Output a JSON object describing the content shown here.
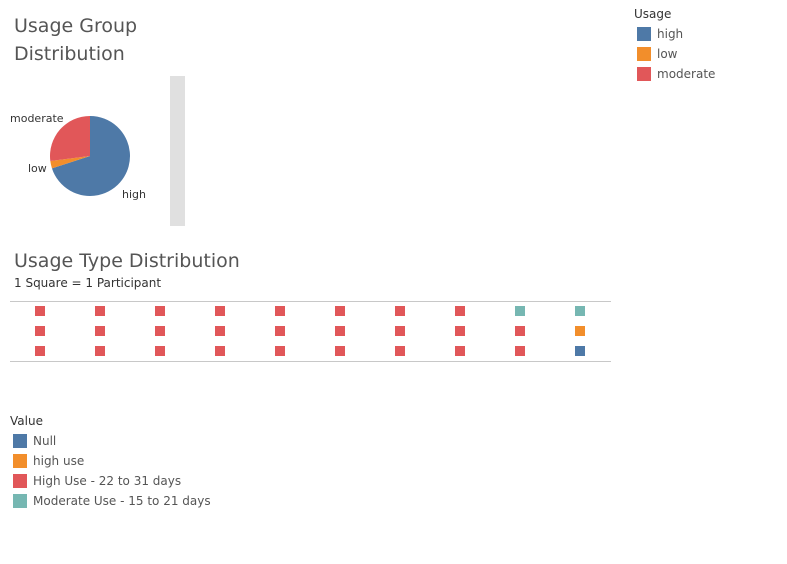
{
  "pie_panel": {
    "title_line1": "Usage Group",
    "title_line2": "Distribution"
  },
  "usage_legend": {
    "title": "Usage",
    "items": [
      {
        "label": "high",
        "color": "#4e79a7"
      },
      {
        "label": "low",
        "color": "#f28e2b"
      },
      {
        "label": "moderate",
        "color": "#e15759"
      }
    ]
  },
  "waffle_panel": {
    "title": "Usage Type Distribution",
    "subtitle": "1 Square = 1 Participant"
  },
  "value_legend": {
    "title": "Value",
    "items": [
      {
        "label": "Null",
        "color": "#4e79a7"
      },
      {
        "label": "high use",
        "color": "#f28e2b"
      },
      {
        "label": "High Use - 22 to 31 days",
        "color": "#e15759"
      },
      {
        "label": "Moderate Use - 15 to 21 days",
        "color": "#76b7b2"
      }
    ]
  },
  "chart_data": [
    {
      "type": "pie",
      "title": "Usage Group Distribution",
      "categories": [
        "high",
        "low",
        "moderate"
      ],
      "values": [
        70,
        3,
        27
      ],
      "colors": [
        "#4e79a7",
        "#f28e2b",
        "#e15759"
      ]
    },
    {
      "type": "heatmap",
      "title": "Usage Type Distribution",
      "subtitle": "1 Square = 1 Participant",
      "columns": 10,
      "rows": 3,
      "cells": [
        [
          "High Use - 22 to 31 days",
          "High Use - 22 to 31 days",
          "High Use - 22 to 31 days",
          "High Use - 22 to 31 days",
          "High Use - 22 to 31 days",
          "High Use - 22 to 31 days",
          "High Use - 22 to 31 days",
          "High Use - 22 to 31 days",
          "Moderate Use - 15 to 21 days",
          "Moderate Use - 15 to 21 days"
        ],
        [
          "High Use - 22 to 31 days",
          "High Use - 22 to 31 days",
          "High Use - 22 to 31 days",
          "High Use - 22 to 31 days",
          "High Use - 22 to 31 days",
          "High Use - 22 to 31 days",
          "High Use - 22 to 31 days",
          "High Use - 22 to 31 days",
          "High Use - 22 to 31 days",
          "high use"
        ],
        [
          "High Use - 22 to 31 days",
          "High Use - 22 to 31 days",
          "High Use - 22 to 31 days",
          "High Use - 22 to 31 days",
          "High Use - 22 to 31 days",
          "High Use - 22 to 31 days",
          "High Use - 22 to 31 days",
          "High Use - 22 to 31 days",
          "High Use - 22 to 31 days",
          "Null"
        ]
      ],
      "counts": {
        "High Use - 22 to 31 days": 26,
        "Moderate Use - 15 to 21 days": 2,
        "high use": 1,
        "Null": 1
      }
    }
  ]
}
